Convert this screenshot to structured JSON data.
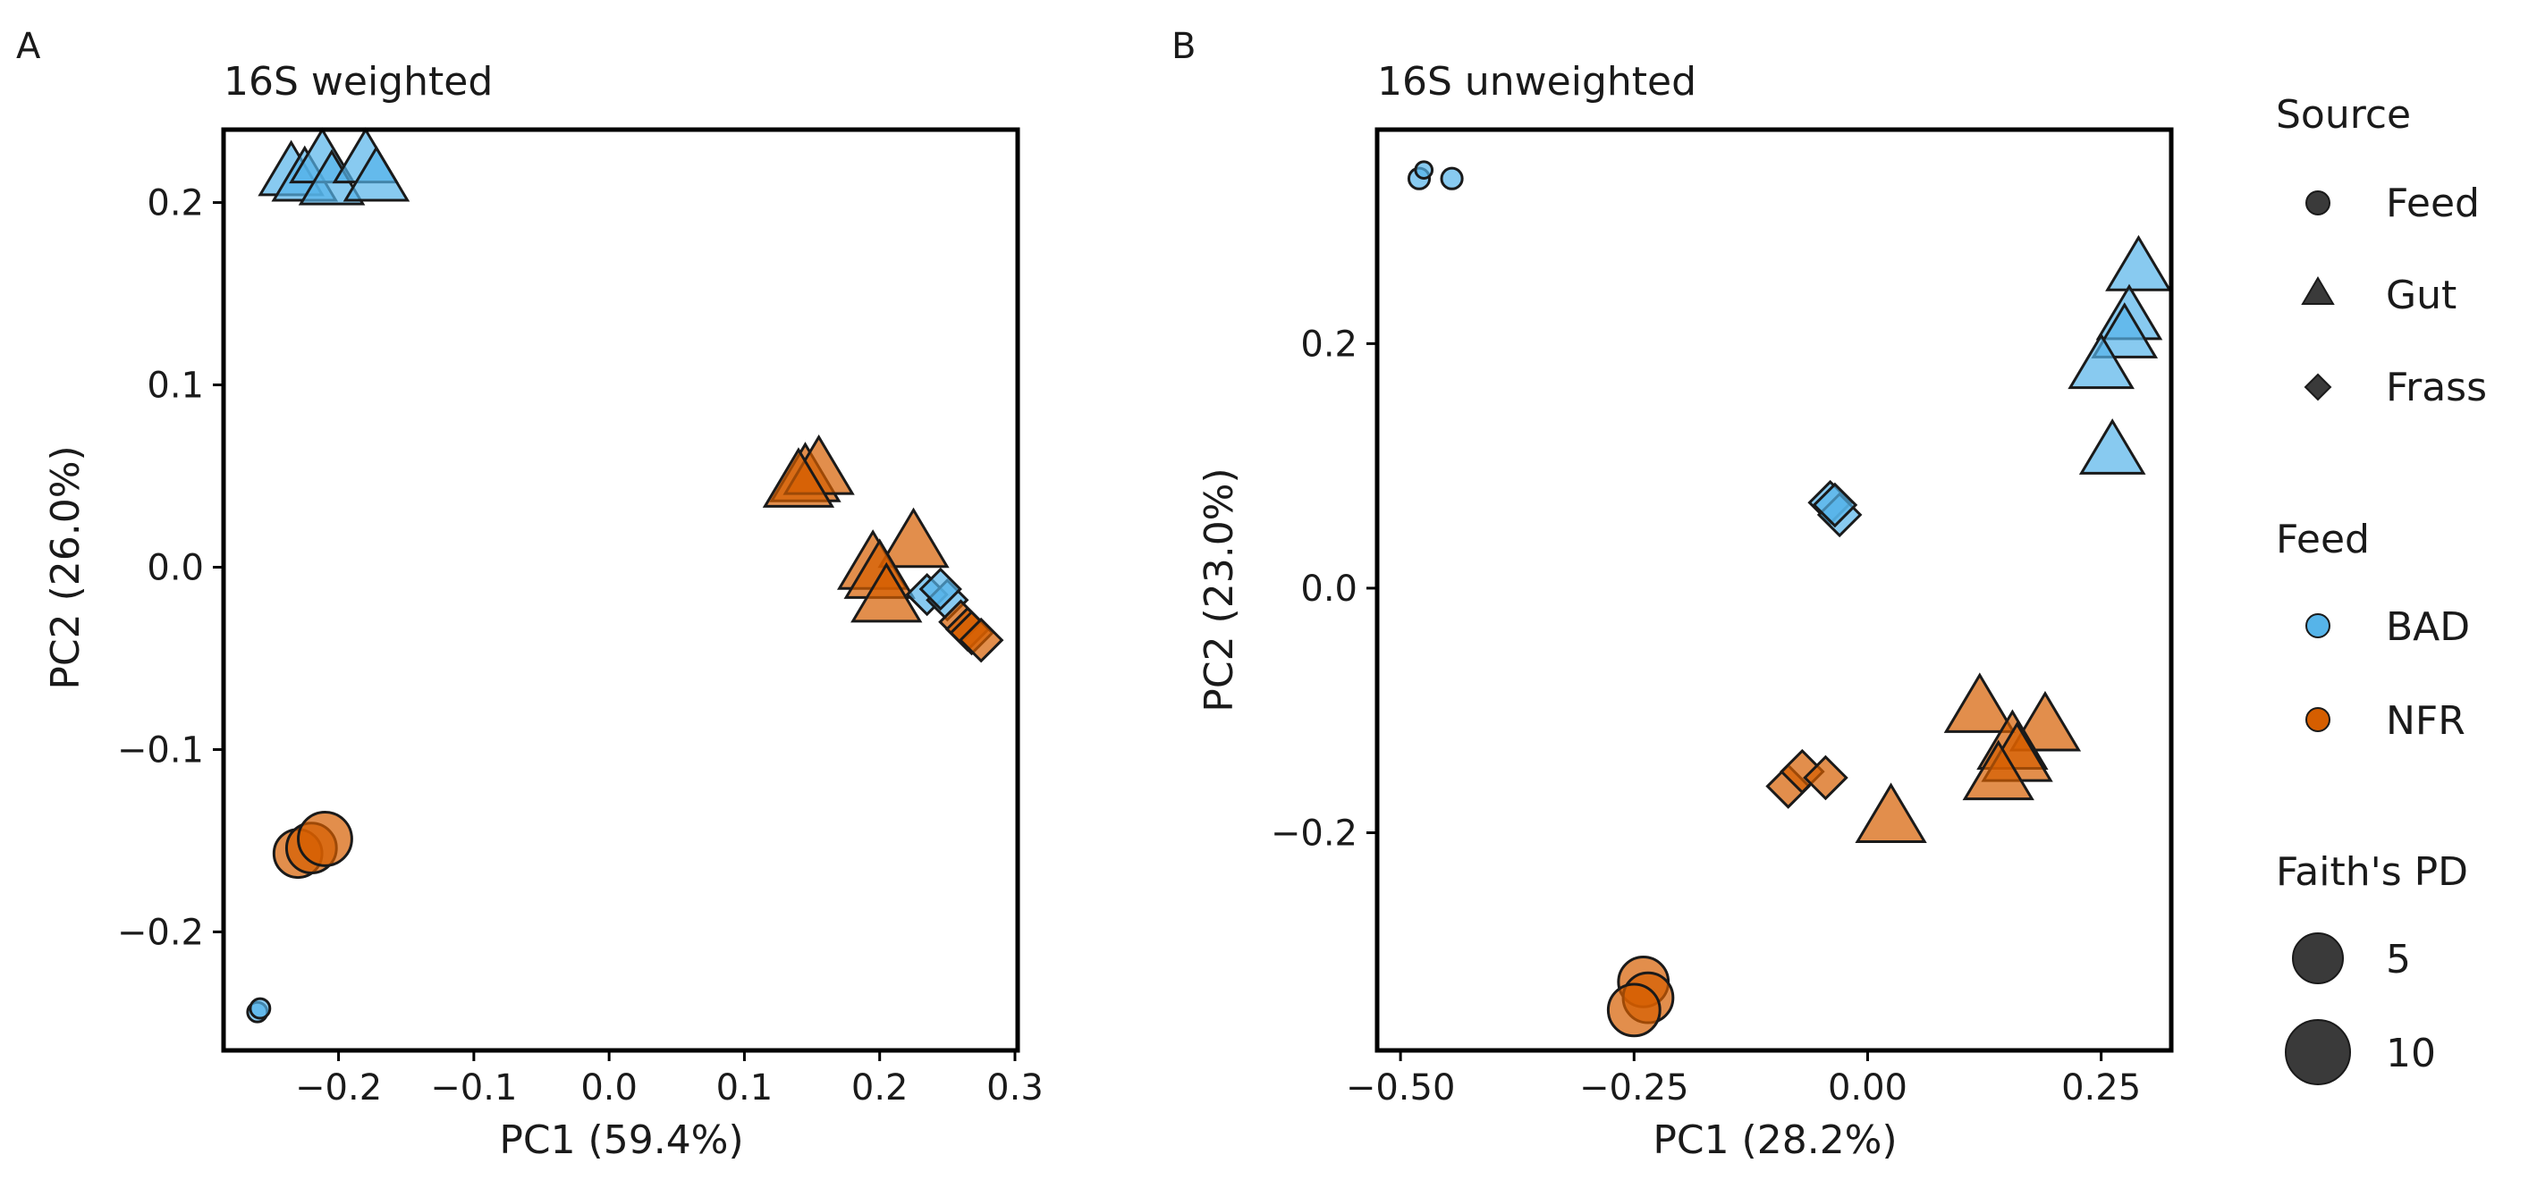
{
  "colors": {
    "BAD": "#56b4e9",
    "NFR": "#d55e00",
    "point_stroke": "#1a1a1a",
    "legend_gray": "#3a3a3a"
  },
  "chart_data": [
    {
      "type": "scatter",
      "panel": "A",
      "title": "16S weighted",
      "xlabel": "PC1 (59.4%)",
      "ylabel": "PC2 (26.0%)",
      "xlim": [
        -0.285,
        0.302
      ],
      "ylim": [
        -0.265,
        0.24
      ],
      "xticks": [
        -0.2,
        -0.1,
        0.0,
        0.1,
        0.2,
        0.3
      ],
      "xticklabels": [
        "−0.2",
        "−0.1",
        "0.0",
        "0.1",
        "0.2",
        "0.3"
      ],
      "yticks": [
        -0.2,
        -0.1,
        0.0,
        0.1,
        0.2
      ],
      "yticklabels": [
        "−0.2",
        "−0.1",
        "0.0",
        "0.1",
        "0.2"
      ],
      "points": [
        {
          "x": -0.26,
          "y": -0.244,
          "source": "Feed",
          "feed": "BAD",
          "pd": 1.2
        },
        {
          "x": -0.258,
          "y": -0.242,
          "source": "Feed",
          "feed": "BAD",
          "pd": 1.2
        },
        {
          "x": -0.235,
          "y": 0.215,
          "source": "Gut",
          "feed": "BAD",
          "pd": 8.0
        },
        {
          "x": -0.225,
          "y": 0.212,
          "source": "Gut",
          "feed": "BAD",
          "pd": 8.0
        },
        {
          "x": -0.212,
          "y": 0.222,
          "source": "Gut",
          "feed": "BAD",
          "pd": 8.0
        },
        {
          "x": -0.205,
          "y": 0.21,
          "source": "Gut",
          "feed": "BAD",
          "pd": 8.0
        },
        {
          "x": -0.18,
          "y": 0.222,
          "source": "Gut",
          "feed": "BAD",
          "pd": 8.0
        },
        {
          "x": -0.172,
          "y": 0.212,
          "source": "Gut",
          "feed": "BAD",
          "pd": 8.0
        },
        {
          "x": 0.145,
          "y": 0.048,
          "source": "Gut",
          "feed": "NFR",
          "pd": 9.0
        },
        {
          "x": 0.155,
          "y": 0.052,
          "source": "Gut",
          "feed": "NFR",
          "pd": 9.0
        },
        {
          "x": 0.14,
          "y": 0.045,
          "source": "Gut",
          "feed": "NFR",
          "pd": 9.0
        },
        {
          "x": 0.225,
          "y": 0.012,
          "source": "Gut",
          "feed": "NFR",
          "pd": 9.0
        },
        {
          "x": 0.195,
          "y": 0.0,
          "source": "Gut",
          "feed": "NFR",
          "pd": 9.0
        },
        {
          "x": 0.2,
          "y": -0.005,
          "source": "Gut",
          "feed": "NFR",
          "pd": 9.0
        },
        {
          "x": 0.205,
          "y": -0.018,
          "source": "Gut",
          "feed": "NFR",
          "pd": 9.0
        },
        {
          "x": 0.235,
          "y": -0.015,
          "source": "Frass",
          "feed": "BAD",
          "pd": 5.5
        },
        {
          "x": 0.25,
          "y": -0.018,
          "source": "Frass",
          "feed": "BAD",
          "pd": 5.5
        },
        {
          "x": 0.245,
          "y": -0.012,
          "source": "Frass",
          "feed": "BAD",
          "pd": 5.5
        },
        {
          "x": 0.26,
          "y": -0.03,
          "source": "Frass",
          "feed": "NFR",
          "pd": 6.0
        },
        {
          "x": 0.265,
          "y": -0.034,
          "source": "Frass",
          "feed": "NFR",
          "pd": 6.0
        },
        {
          "x": 0.268,
          "y": -0.036,
          "source": "Frass",
          "feed": "NFR",
          "pd": 6.0
        },
        {
          "x": 0.275,
          "y": -0.04,
          "source": "Frass",
          "feed": "NFR",
          "pd": 6.0
        },
        {
          "x": -0.23,
          "y": -0.157,
          "source": "Feed",
          "feed": "NFR",
          "pd": 9.0
        },
        {
          "x": -0.22,
          "y": -0.154,
          "source": "Feed",
          "feed": "NFR",
          "pd": 9.5
        },
        {
          "x": -0.21,
          "y": -0.149,
          "source": "Feed",
          "feed": "NFR",
          "pd": 10.5
        }
      ]
    },
    {
      "type": "scatter",
      "panel": "B",
      "title": "16S unweighted",
      "xlabel": "PC1 (28.2%)",
      "ylabel": "PC2 (23.0%)",
      "xlim": [
        -0.525,
        0.325
      ],
      "ylim": [
        -0.378,
        0.375
      ],
      "xticks": [
        -0.5,
        -0.25,
        0.0,
        0.25
      ],
      "xticklabels": [
        "−0.50",
        "−0.25",
        "0.00",
        "0.25"
      ],
      "yticks": [
        -0.2,
        0.0,
        0.2
      ],
      "yticklabels": [
        "−0.2",
        "0.0",
        "0.2"
      ],
      "points": [
        {
          "x": -0.48,
          "y": 0.335,
          "source": "Feed",
          "feed": "BAD",
          "pd": 1.5
        },
        {
          "x": -0.445,
          "y": 0.335,
          "source": "Feed",
          "feed": "BAD",
          "pd": 1.5
        },
        {
          "x": -0.475,
          "y": 0.342,
          "source": "Feed",
          "feed": "BAD",
          "pd": 0.4
        },
        {
          "x": 0.29,
          "y": 0.26,
          "source": "Gut",
          "feed": "BAD",
          "pd": 8.0
        },
        {
          "x": 0.28,
          "y": 0.22,
          "source": "Gut",
          "feed": "BAD",
          "pd": 8.0
        },
        {
          "x": 0.275,
          "y": 0.205,
          "source": "Gut",
          "feed": "BAD",
          "pd": 8.0
        },
        {
          "x": 0.25,
          "y": 0.18,
          "source": "Gut",
          "feed": "BAD",
          "pd": 8.0
        },
        {
          "x": 0.262,
          "y": 0.11,
          "source": "Gut",
          "feed": "BAD",
          "pd": 8.0
        },
        {
          "x": -0.04,
          "y": 0.07,
          "source": "Frass",
          "feed": "BAD",
          "pd": 6.0
        },
        {
          "x": -0.03,
          "y": 0.06,
          "source": "Frass",
          "feed": "BAD",
          "pd": 6.0
        },
        {
          "x": -0.035,
          "y": 0.068,
          "source": "Frass",
          "feed": "BAD",
          "pd": 6.0
        },
        {
          "x": 0.12,
          "y": -0.1,
          "source": "Gut",
          "feed": "NFR",
          "pd": 9.0
        },
        {
          "x": 0.19,
          "y": -0.115,
          "source": "Gut",
          "feed": "NFR",
          "pd": 9.0
        },
        {
          "x": 0.155,
          "y": -0.13,
          "source": "Gut",
          "feed": "NFR",
          "pd": 9.0
        },
        {
          "x": 0.16,
          "y": -0.14,
          "source": "Gut",
          "feed": "NFR",
          "pd": 9.0
        },
        {
          "x": 0.14,
          "y": -0.155,
          "source": "Gut",
          "feed": "NFR",
          "pd": 9.0
        },
        {
          "x": 0.025,
          "y": -0.19,
          "source": "Gut",
          "feed": "NFR",
          "pd": 9.0
        },
        {
          "x": -0.085,
          "y": -0.162,
          "source": "Frass",
          "feed": "NFR",
          "pd": 6.0
        },
        {
          "x": -0.07,
          "y": -0.15,
          "source": "Frass",
          "feed": "NFR",
          "pd": 6.0
        },
        {
          "x": -0.045,
          "y": -0.155,
          "source": "Frass",
          "feed": "NFR",
          "pd": 6.0
        },
        {
          "x": -0.24,
          "y": -0.322,
          "source": "Feed",
          "feed": "NFR",
          "pd": 9.5
        },
        {
          "x": -0.235,
          "y": -0.335,
          "source": "Feed",
          "feed": "NFR",
          "pd": 9.5
        },
        {
          "x": -0.25,
          "y": -0.345,
          "source": "Feed",
          "feed": "NFR",
          "pd": 10.0
        }
      ]
    }
  ],
  "legend": {
    "source_title": "Source",
    "source_items": [
      {
        "label": "Feed",
        "marker": "circle"
      },
      {
        "label": "Gut",
        "marker": "triangle"
      },
      {
        "label": "Frass",
        "marker": "diamond"
      }
    ],
    "feed_title": "Feed",
    "feed_items": [
      {
        "label": "BAD",
        "color_key": "BAD"
      },
      {
        "label": "NFR",
        "color_key": "NFR"
      }
    ],
    "pd_title": "Faith's PD",
    "pd_items": [
      {
        "label": "5",
        "value": 5
      },
      {
        "label": "10",
        "value": 10
      }
    ]
  }
}
